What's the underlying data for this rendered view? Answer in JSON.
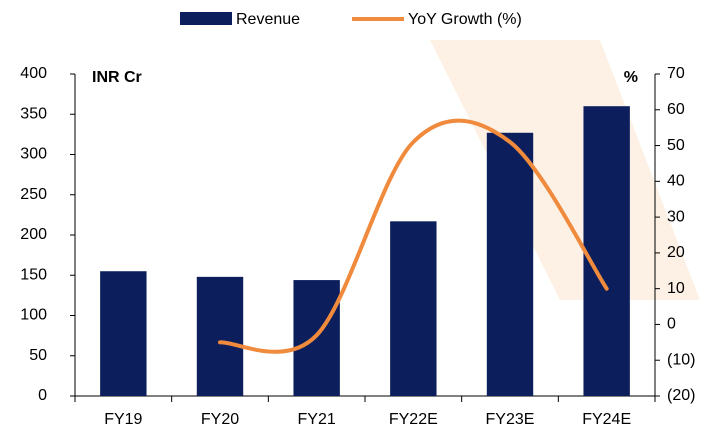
{
  "chart_data": {
    "type": "bar-line",
    "left_axis_label": "INR Cr",
    "right_axis_label": "%",
    "categories": [
      "FY19",
      "FY20",
      "FY21",
      "FY22E",
      "FY23E",
      "FY24E"
    ],
    "series": [
      {
        "name": "Revenue",
        "color": "#0c1f5c",
        "type": "bar",
        "values": [
          155,
          148,
          144,
          217,
          327,
          360
        ]
      },
      {
        "name": "YoY Growth (%)",
        "color": "#f08a3c",
        "type": "line",
        "axis": "y2",
        "values": [
          null,
          -5,
          -3,
          51,
          51,
          10
        ]
      }
    ],
    "ylim": [
      0,
      400
    ],
    "yticks": [
      0,
      50,
      100,
      150,
      200,
      250,
      300,
      350,
      400
    ],
    "y2lim": [
      -20,
      70
    ],
    "y2ticks": [
      {
        "value": -20,
        "label": "(20)"
      },
      {
        "value": -10,
        "label": "(10)"
      },
      0,
      10,
      20,
      30,
      40,
      50,
      60,
      70
    ],
    "legend": "top"
  }
}
